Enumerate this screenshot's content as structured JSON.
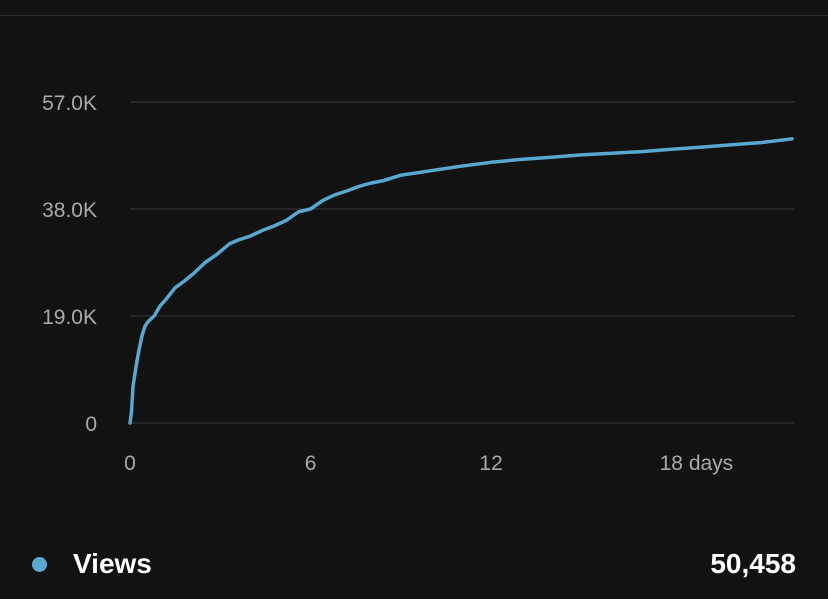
{
  "colors": {
    "background": "#121212",
    "line": "#58a8d0",
    "grid": "#3a3a3a",
    "tick_text": "#a9a9a9",
    "legend_text": "#ffffff"
  },
  "legend": {
    "series_name": "Views",
    "total": "50,458",
    "dot_icon": "circle-dot-icon"
  },
  "chart_data": {
    "type": "line",
    "xlabel": "",
    "ylabel": "",
    "xlim": [
      0,
      22
    ],
    "ylim": [
      0,
      57000
    ],
    "grid": true,
    "y_ticks": [
      {
        "value": 0,
        "label": "0"
      },
      {
        "value": 19000,
        "label": "19.0K"
      },
      {
        "value": 38000,
        "label": "38.0K"
      },
      {
        "value": 57000,
        "label": "57.0K"
      }
    ],
    "x_ticks": [
      {
        "value": 0,
        "label": "0"
      },
      {
        "value": 6,
        "label": "6"
      },
      {
        "value": 12,
        "label": "12"
      },
      {
        "value": 18,
        "label": "18 days"
      }
    ],
    "series": [
      {
        "name": "Views",
        "x": [
          0,
          0.05,
          0.1,
          0.2,
          0.3,
          0.4,
          0.5,
          0.6,
          0.8,
          1.0,
          1.2,
          1.5,
          1.8,
          2.1,
          2.5,
          2.9,
          3.3,
          3.6,
          4.0,
          4.4,
          4.8,
          5.2,
          5.6,
          6.0,
          6.4,
          6.8,
          7.2,
          7.6,
          8.0,
          8.4,
          9.0,
          9.5,
          10,
          11,
          12,
          13,
          14,
          15,
          16,
          17,
          18,
          19,
          20,
          21,
          22
        ],
        "y": [
          0,
          2000,
          6500,
          10000,
          13000,
          15500,
          17200,
          18000,
          19000,
          20800,
          22000,
          24000,
          25200,
          26500,
          28500,
          30000,
          31800,
          32500,
          33200,
          34200,
          35000,
          36000,
          37500,
          38000,
          39500,
          40500,
          41200,
          42000,
          42600,
          43000,
          44000,
          44400,
          44800,
          45600,
          46300,
          46800,
          47200,
          47600,
          47900,
          48200,
          48600,
          49000,
          49400,
          49800,
          50458
        ]
      }
    ]
  }
}
